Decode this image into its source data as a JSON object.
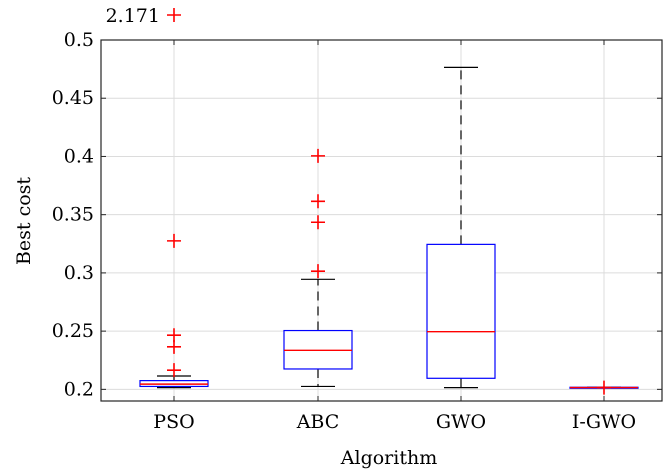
{
  "chart_data": {
    "type": "boxplot",
    "xlabel": "Algorithm",
    "ylabel": "Best cost",
    "ylim": [
      0.19,
      0.5
    ],
    "yticks": [
      0.2,
      0.25,
      0.3,
      0.35,
      0.4,
      0.45,
      0.5
    ],
    "ytick_labels": [
      "0.2",
      "0.25",
      "0.3",
      "0.35",
      "0.4",
      "0.45",
      "0.5"
    ],
    "grid": true,
    "categories": [
      "PSO",
      "ABC",
      "GWO",
      "I-GWO"
    ],
    "colors": {
      "box": "#0000ff",
      "median": "#ff0000",
      "whisker": "#000000",
      "outlier": "#ff0000"
    },
    "boxes": [
      {
        "name": "PSO",
        "whisker_low": 0.2015,
        "q1": 0.2025,
        "median": 0.2045,
        "q3": 0.2075,
        "whisker_high": 0.2115,
        "outliers": [
          0.2165,
          0.2365,
          0.2465,
          0.3275
        ]
      },
      {
        "name": "ABC",
        "whisker_low": 0.2025,
        "q1": 0.2175,
        "median": 0.2335,
        "q3": 0.2505,
        "whisker_high": 0.2945,
        "outliers": [
          0.3015,
          0.3435,
          0.3615,
          0.4005
        ]
      },
      {
        "name": "GWO",
        "whisker_low": 0.2015,
        "q1": 0.2095,
        "median": 0.2495,
        "q3": 0.3245,
        "whisker_high": 0.4765,
        "outliers": []
      },
      {
        "name": "I-GWO",
        "whisker_low": 0.2015,
        "q1": 0.2015,
        "median": 0.2015,
        "q3": 0.2018,
        "whisker_high": 0.2018,
        "outliers": [
          0.2015
        ]
      }
    ],
    "offscale_outlier": {
      "category": "PSO",
      "label": "2.171"
    }
  }
}
